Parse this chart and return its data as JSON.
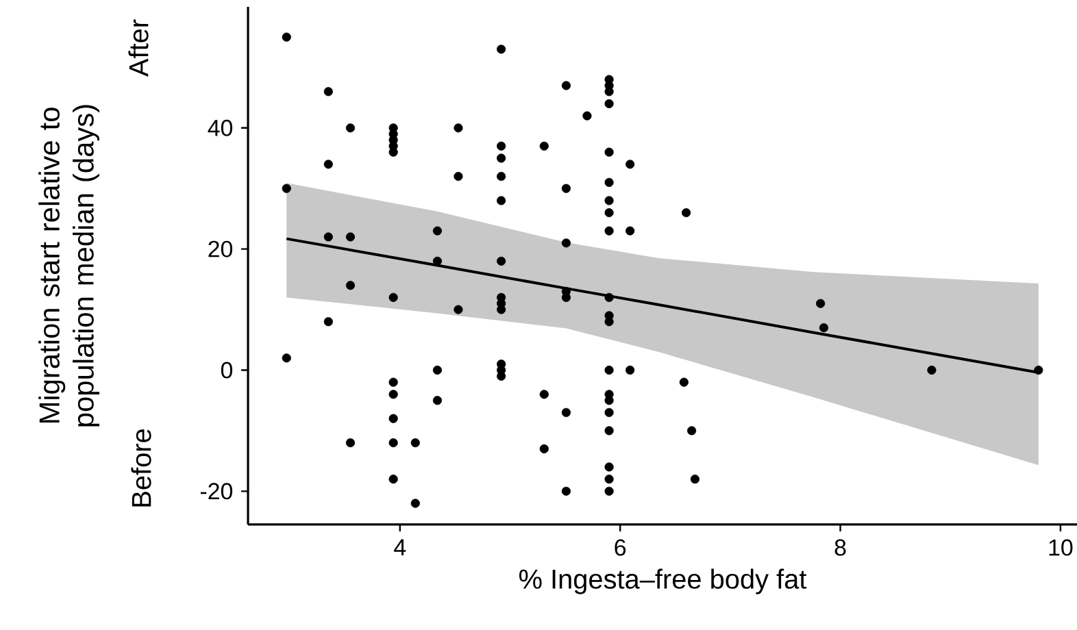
{
  "chart_data": {
    "type": "scatter",
    "xlabel": "% Ingesta–free body fat",
    "ylabel": "Migration start relative to population median (days)",
    "annotations": [
      "After",
      "Before"
    ],
    "xlim": [
      2.62,
      10.15
    ],
    "ylim": [
      -25.5,
      60
    ],
    "xticks": [
      4,
      6,
      8,
      10
    ],
    "yticks": [
      -20,
      0,
      20,
      40
    ],
    "grid": false,
    "marker": "circle",
    "series": [
      {
        "color": "#000000",
        "x": [
          2.97,
          2.97,
          2.97,
          3.35,
          3.35,
          3.35,
          3.35,
          3.55,
          3.55,
          3.55,
          3.55,
          3.94,
          3.94,
          3.94,
          3.94,
          3.94,
          3.94,
          3.94,
          3.94,
          3.94,
          3.94,
          3.94,
          4.14,
          4.14,
          4.34,
          4.34,
          4.34,
          4.34,
          4.53,
          4.53,
          4.53,
          4.92,
          4.92,
          4.92,
          4.92,
          4.92,
          4.92,
          4.92,
          4.92,
          4.92,
          4.92,
          4.92,
          4.92,
          5.31,
          5.31,
          5.31,
          5.51,
          5.51,
          5.51,
          5.51,
          5.51,
          5.51,
          5.51,
          5.7,
          5.9,
          5.9,
          5.9,
          5.9,
          5.9,
          5.9,
          5.9,
          5.9,
          5.9,
          5.9,
          5.9,
          5.9,
          5.9,
          5.9,
          5.9,
          5.9,
          5.9,
          5.9,
          5.9,
          5.9,
          6.09,
          6.09,
          6.09,
          6.6,
          6.58,
          6.65,
          6.68,
          7.82,
          7.85,
          8.83,
          9.8
        ],
        "values": [
          55,
          30,
          2,
          46,
          34,
          22,
          8,
          40,
          22,
          14,
          -12,
          40,
          39,
          38,
          37,
          36,
          12,
          -2,
          -4,
          -8,
          -12,
          -18,
          -12,
          -22,
          23,
          18,
          0,
          -5,
          40,
          32,
          10,
          53,
          37,
          35,
          32,
          28,
          18,
          12,
          11,
          10,
          1,
          0,
          -1,
          37,
          -4,
          -13,
          47,
          30,
          21,
          13,
          12,
          -7,
          -20,
          42,
          48,
          47,
          46,
          44,
          36,
          31,
          28,
          26,
          23,
          12,
          9,
          8,
          0,
          -4,
          -5,
          -7,
          -10,
          -16,
          -18,
          -20,
          34,
          23,
          0,
          26,
          -2,
          -10,
          -18,
          11,
          7,
          0,
          0
        ]
      },
      {
        "type": "line",
        "marker": "none",
        "color": "#000000",
        "x": [
          2.97,
          4.34,
          5.51,
          6.35,
          7.76,
          9.8
        ],
        "values": [
          21.7,
          17.3,
          13.5,
          10.8,
          6.2,
          -0.4
        ],
        "lower": [
          12,
          9.4,
          6.9,
          3,
          -4.5,
          -15.7
        ],
        "upper": [
          30.9,
          26.2,
          21.1,
          18.5,
          16.2,
          14.3
        ]
      }
    ]
  }
}
